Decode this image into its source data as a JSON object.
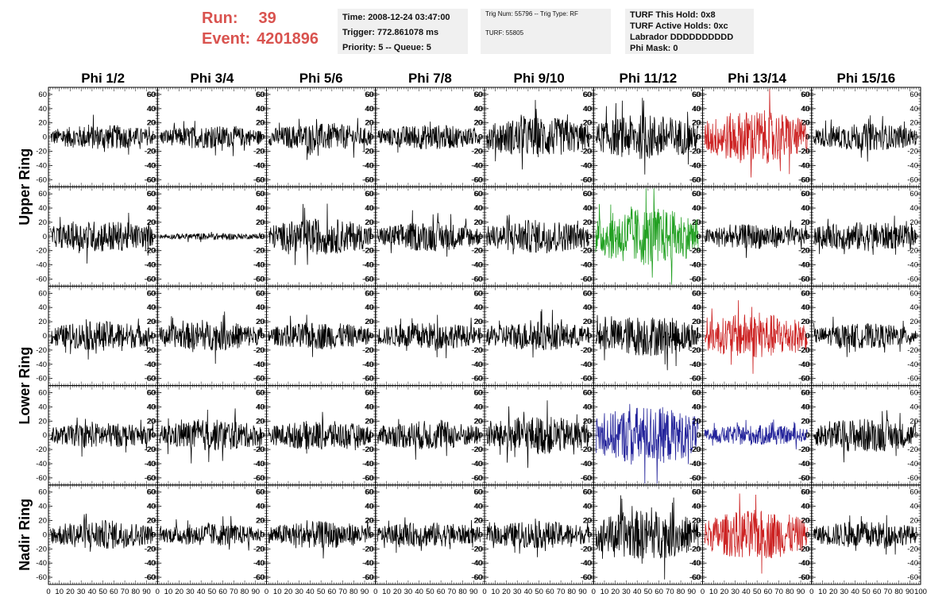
{
  "header": {
    "run_label": "Run:",
    "run_value": "39",
    "event_label": "Event:",
    "event_value": "4201896"
  },
  "time_box": {
    "time": "Time: 2008-12-24 03:47:00",
    "trigger": "Trigger: 772.861078 ms",
    "priority": "Priority: 5 -- Queue: 5"
  },
  "trig_box": {
    "trig": "Trig Num: 55796 -- Trig Type: RF",
    "turf": "TURF: 55805"
  },
  "turf_box": {
    "hold": "TURF This Hold: 0x8",
    "active": "TURF Active Holds: 0xc",
    "labrador": "Labrador DDDDDDDDDD",
    "phimask": "Phi Mask: 0"
  },
  "chart_data": {
    "type": "line",
    "columns": [
      "Phi 1/2",
      "Phi 3/4",
      "Phi 5/6",
      "Phi 7/8",
      "Phi 9/10",
      "Phi 11/12",
      "Phi 13/14",
      "Phi 15/16"
    ],
    "ring_labels": [
      {
        "label": "Upper Ring",
        "rows": [
          0,
          1
        ]
      },
      {
        "label": "Lower Ring",
        "rows": [
          2,
          3
        ]
      },
      {
        "label": "Nadir Ring",
        "rows": [
          4
        ]
      }
    ],
    "xlim": [
      0,
      100
    ],
    "ylim": [
      -70,
      70
    ],
    "x_tick_labels": [
      "0",
      "10",
      "20",
      "30",
      "40",
      "50",
      "60",
      "70",
      "80",
      "90",
      "100"
    ],
    "y_tick_labels": [
      "-60",
      "-40",
      "-20",
      "0",
      "20",
      "40",
      "60"
    ],
    "colors": {
      "default": "#000000",
      "red": "#cc2222",
      "green": "#22a022",
      "blue": "#22229a"
    },
    "panels": [
      [
        {
          "color": "default",
          "amp": 11
        },
        {
          "color": "default",
          "amp": 10
        },
        {
          "color": "default",
          "amp": 12
        },
        {
          "color": "default",
          "amp": 11
        },
        {
          "color": "default",
          "amp": 18
        },
        {
          "color": "default",
          "amp": 20
        },
        {
          "color": "red",
          "amp": 24
        },
        {
          "color": "default",
          "amp": 12
        }
      ],
      [
        {
          "color": "default",
          "amp": 14
        },
        {
          "color": "default",
          "amp": 3
        },
        {
          "color": "default",
          "amp": 16
        },
        {
          "color": "default",
          "amp": 13
        },
        {
          "color": "default",
          "amp": 15
        },
        {
          "color": "green",
          "amp": 26
        },
        {
          "color": "default",
          "amp": 11
        },
        {
          "color": "default",
          "amp": 13
        }
      ],
      [
        {
          "color": "default",
          "amp": 13
        },
        {
          "color": "default",
          "amp": 13
        },
        {
          "color": "default",
          "amp": 12
        },
        {
          "color": "default",
          "amp": 12
        },
        {
          "color": "default",
          "amp": 13
        },
        {
          "color": "default",
          "amp": 18
        },
        {
          "color": "red",
          "amp": 20
        },
        {
          "color": "default",
          "amp": 11
        }
      ],
      [
        {
          "color": "default",
          "amp": 11
        },
        {
          "color": "default",
          "amp": 14
        },
        {
          "color": "default",
          "amp": 13
        },
        {
          "color": "default",
          "amp": 13
        },
        {
          "color": "default",
          "amp": 17
        },
        {
          "color": "blue",
          "amp": 26
        },
        {
          "color": "blue",
          "amp": 9
        },
        {
          "color": "default",
          "amp": 15
        }
      ],
      [
        {
          "color": "default",
          "amp": 13
        },
        {
          "color": "default",
          "amp": 10
        },
        {
          "color": "default",
          "amp": 12
        },
        {
          "color": "default",
          "amp": 11
        },
        {
          "color": "default",
          "amp": 12
        },
        {
          "color": "default",
          "amp": 22
        },
        {
          "color": "red",
          "amp": 22
        },
        {
          "color": "default",
          "amp": 12
        }
      ]
    ]
  }
}
